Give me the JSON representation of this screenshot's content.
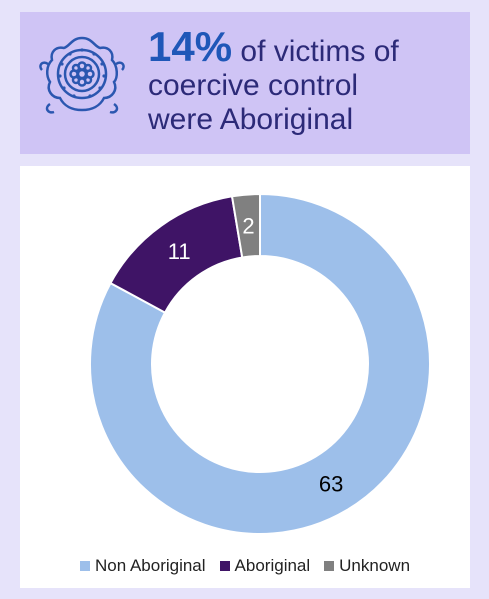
{
  "header": {
    "percent": "14%",
    "text_line1": "of victims of",
    "text_line2": "coercive control",
    "text_line3": "were Aboriginal",
    "icon": "aboriginal-dot-art-icon"
  },
  "colors": {
    "background": "#e6e3fa",
    "header_bg": "#cfc4f5",
    "accent": "#1f57b8",
    "text": "#2c2a78"
  },
  "chart_data": {
    "type": "pie",
    "variant": "donut",
    "series": [
      {
        "name": "Non Aboriginal",
        "value": 63,
        "color": "#9dbfea",
        "label_color": "#000000"
      },
      {
        "name": "Aboriginal",
        "value": 11,
        "color": "#3f1466",
        "label_color": "#ffffff"
      },
      {
        "name": "Unknown",
        "value": 2,
        "color": "#808080",
        "label_color": "#ffffff"
      }
    ],
    "legend_position": "bottom"
  }
}
